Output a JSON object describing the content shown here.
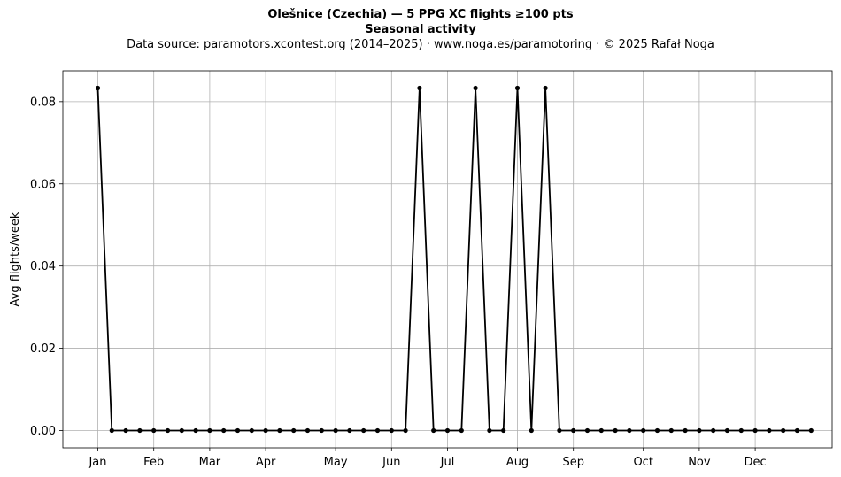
{
  "chart_data": {
    "type": "line",
    "title": "Olešnice (Czechia)  —  5 PPG XC flights ≥100 pts",
    "subtitle": "Seasonal activity",
    "source_line": "Data source: paramotors.xcontest.org (2014–2025)  ·  www.noga.es/paramotoring  ·  © 2025 Rafał Noga",
    "xlabel": "",
    "ylabel": "Avg flights/week",
    "x_unit": "week of year",
    "xlim": [
      -1.5,
      53.5
    ],
    "ylim": [
      -0.0042,
      0.0875
    ],
    "grid": true,
    "line_color": "#000000",
    "grid_color": "#b0b0b0",
    "x_ticks": [
      {
        "label": "Jan",
        "week": 1
      },
      {
        "label": "Feb",
        "week": 5
      },
      {
        "label": "Mar",
        "week": 9
      },
      {
        "label": "Apr",
        "week": 13
      },
      {
        "label": "May",
        "week": 18
      },
      {
        "label": "Jun",
        "week": 22
      },
      {
        "label": "Jul",
        "week": 26
      },
      {
        "label": "Aug",
        "week": 31
      },
      {
        "label": "Sep",
        "week": 35
      },
      {
        "label": "Oct",
        "week": 40
      },
      {
        "label": "Nov",
        "week": 44
      },
      {
        "label": "Dec",
        "week": 48
      }
    ],
    "y_ticks": [
      "0.00",
      "0.02",
      "0.04",
      "0.06",
      "0.08"
    ],
    "series": [
      {
        "x": [
          1,
          2,
          3,
          4,
          5,
          6,
          7,
          8,
          9,
          10,
          11,
          12,
          13,
          14,
          15,
          16,
          17,
          18,
          19,
          20,
          21,
          22,
          23,
          24,
          25,
          26,
          27,
          28,
          29,
          30,
          31,
          32,
          33,
          34,
          35,
          36,
          37,
          38,
          39,
          40,
          41,
          42,
          43,
          44,
          45,
          46,
          47,
          48,
          49,
          50,
          51,
          52
        ],
        "values": [
          0.0833,
          0,
          0,
          0,
          0,
          0,
          0,
          0,
          0,
          0,
          0,
          0,
          0,
          0,
          0,
          0,
          0,
          0,
          0,
          0,
          0,
          0,
          0,
          0.0833,
          0,
          0,
          0,
          0.0833,
          0,
          0,
          0.0833,
          0,
          0.0833,
          0,
          0,
          0,
          0,
          0,
          0,
          0,
          0,
          0,
          0,
          0,
          0,
          0,
          0,
          0,
          0,
          0,
          0,
          0
        ]
      }
    ]
  }
}
